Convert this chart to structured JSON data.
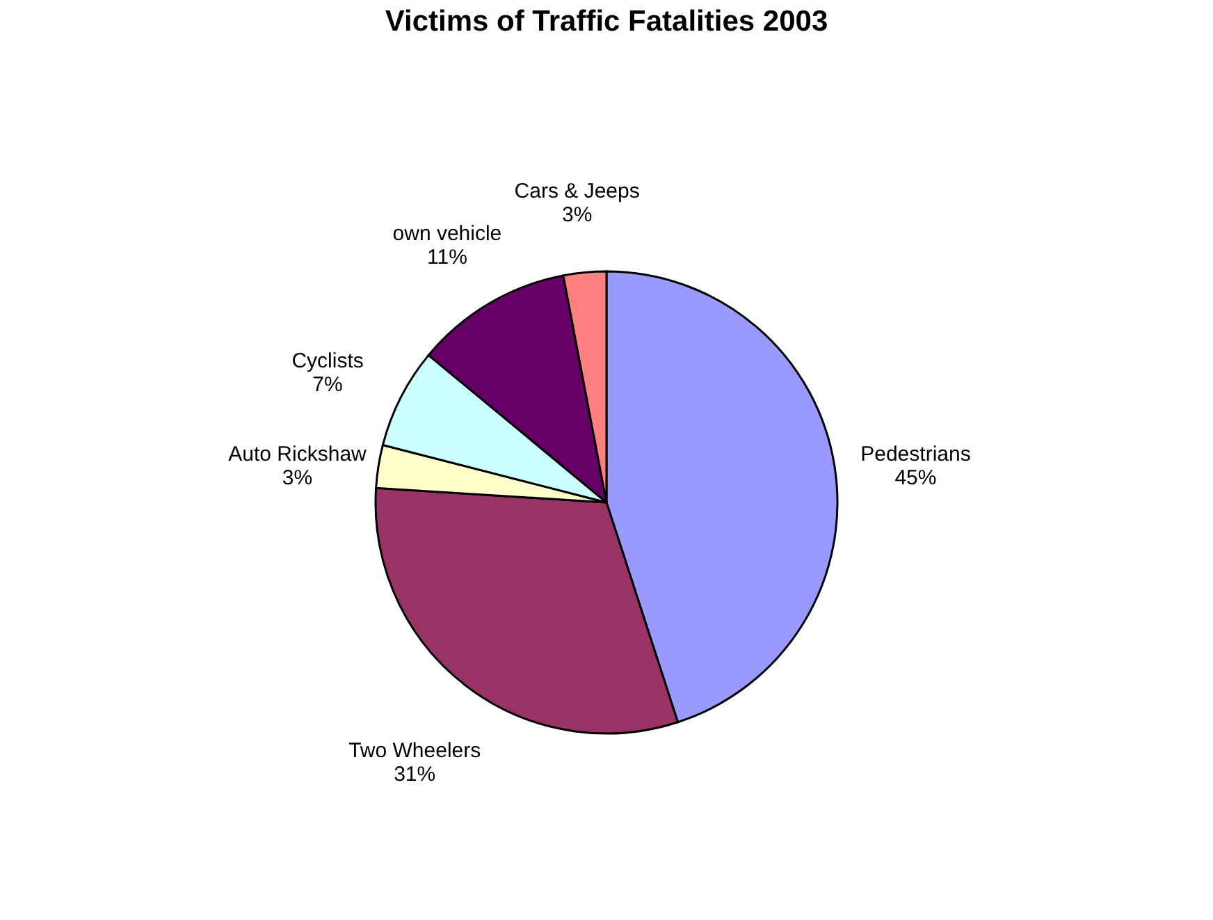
{
  "chart_data": {
    "type": "pie",
    "title": "Victims of Traffic Fatalities 2003",
    "categories": [
      "Pedestrians",
      "Two Wheelers",
      "Auto Rickshaw",
      "Cyclists",
      "own vehicle",
      "Cars & Jeeps"
    ],
    "values": [
      45,
      31,
      3,
      7,
      11,
      3
    ],
    "colors": [
      "#9999ff",
      "#993366",
      "#ffffcc",
      "#ccffff",
      "#660066",
      "#ff8080"
    ],
    "value_labels": [
      "45%",
      "31%",
      "3%",
      "7%",
      "11%",
      "3%"
    ],
    "legend": false
  }
}
